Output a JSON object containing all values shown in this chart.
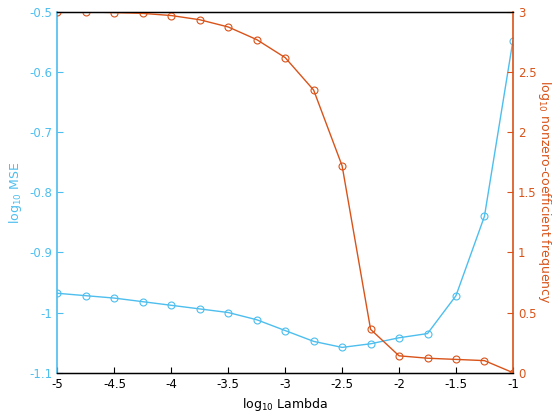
{
  "blue_x": [
    -5.0,
    -4.75,
    -4.5,
    -4.25,
    -4.0,
    -3.75,
    -3.5,
    -3.25,
    -3.0,
    -2.75,
    -2.5,
    -2.25,
    -2.0,
    -1.75,
    -1.5,
    -1.25,
    -1.0
  ],
  "blue_y": [
    -0.968,
    -0.972,
    -0.976,
    -0.982,
    -0.988,
    -0.994,
    -1.0,
    -1.012,
    -1.03,
    -1.048,
    -1.058,
    -1.052,
    -1.042,
    -1.035,
    -0.972,
    -0.84,
    -0.548
  ],
  "orange_x": [
    -5.0,
    -4.75,
    -4.5,
    -4.25,
    -4.0,
    -3.75,
    -3.5,
    -3.25,
    -3.0,
    -2.75,
    -2.5,
    -2.25,
    -2.0,
    -1.75,
    -1.5,
    -1.25,
    -1.0
  ],
  "orange_y": [
    3.0,
    3.0,
    2.995,
    2.988,
    2.97,
    2.935,
    2.875,
    2.77,
    2.62,
    2.35,
    1.72,
    0.36,
    0.14,
    0.12,
    0.11,
    0.1,
    0.0
  ],
  "blue_color": "#4DBEEE",
  "orange_color": "#D95319",
  "xlabel": "log$_{10}$ Lambda",
  "ylabel_left": "log$_{10}$ MSE",
  "ylabel_right": "log$_{10}$ nonzero-coefficient frequency",
  "xlim": [
    -5.0,
    -1.0
  ],
  "ylim_left": [
    -1.1,
    -0.5
  ],
  "ylim_right": [
    0.0,
    3.0
  ],
  "xticks": [
    -5.0,
    -4.5,
    -4.0,
    -3.5,
    -3.0,
    -2.5,
    -2.0,
    -1.5,
    -1.0
  ],
  "xtick_labels": [
    "-5",
    "-4.5",
    "-4",
    "-3.5",
    "-3",
    "-2.5",
    "-2",
    "-1.5",
    "-1"
  ],
  "yticks_left": [
    -1.1,
    -1.0,
    -0.9,
    -0.8,
    -0.7,
    -0.6,
    -0.5
  ],
  "ytick_labels_left": [
    "-1.1",
    "-1",
    "-0.9",
    "-0.8",
    "-0.7",
    "-0.6",
    "-0.5"
  ],
  "yticks_right": [
    0.0,
    0.5,
    1.0,
    1.5,
    2.0,
    2.5,
    3.0
  ],
  "ytick_labels_right": [
    "0",
    "0.5",
    "1",
    "1.5",
    "2",
    "2.5",
    "3"
  ],
  "marker": "o",
  "marker_size": 5,
  "line_width": 1.0,
  "bg_color": "#ffffff",
  "figsize": [
    5.6,
    4.2
  ],
  "dpi": 100
}
